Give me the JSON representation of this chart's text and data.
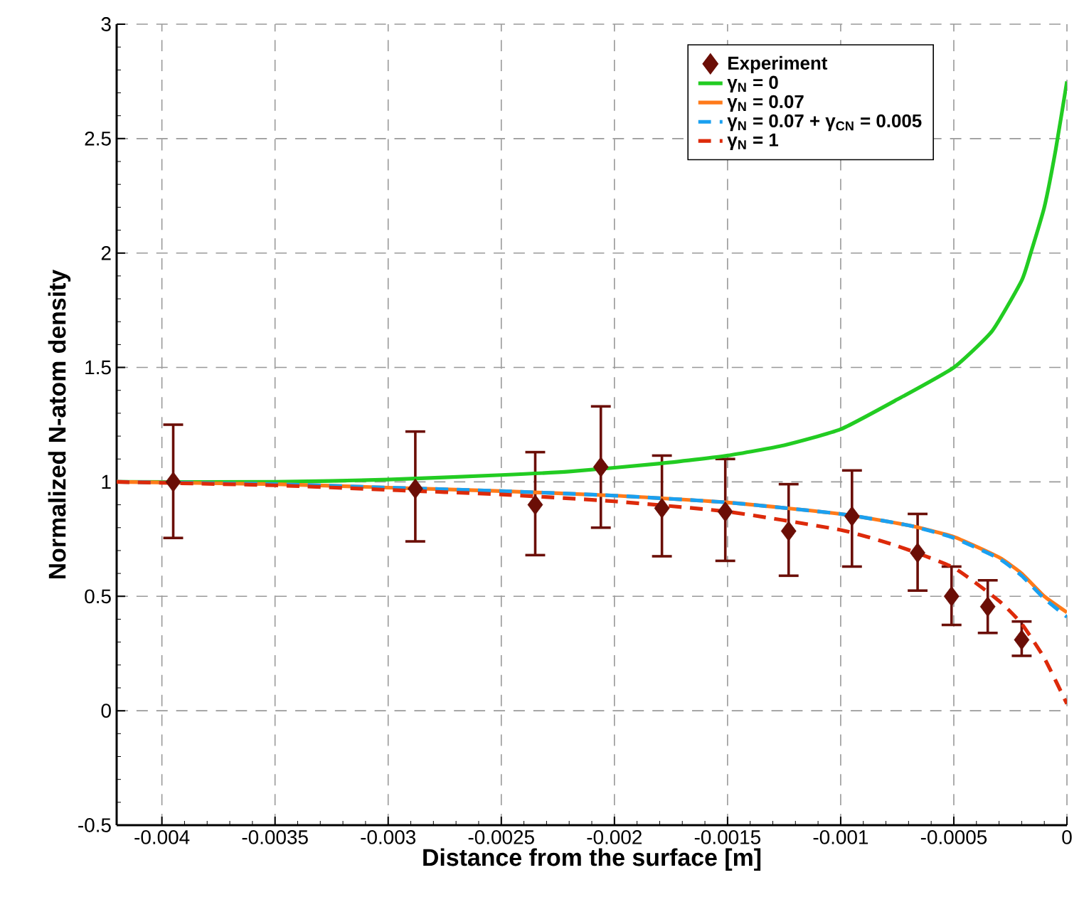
{
  "chart_data": {
    "type": "line",
    "xlabel": "Distance from the surface [m]",
    "ylabel": "Normalized N-atom density",
    "xlim": [
      -0.0042,
      0
    ],
    "ylim": [
      -0.5,
      3
    ],
    "xticks": [
      -0.004,
      -0.0035,
      -0.003,
      -0.0025,
      -0.002,
      -0.0015,
      -0.001,
      -0.0005,
      0
    ],
    "yticks": [
      -0.5,
      0,
      0.5,
      1,
      1.5,
      2,
      2.5,
      3
    ],
    "grid": true,
    "legend": "top right",
    "line_style": "solid",
    "series": [
      {
        "name": "Experiment",
        "type": "scatter",
        "marker": "diamond",
        "color": "#6b0e06",
        "x": [
          -0.00395,
          -0.00288,
          -0.00235,
          -0.00206,
          -0.00179,
          -0.00151,
          -0.00123,
          -0.00095,
          -0.00066,
          -0.00051,
          -0.00035,
          -0.0002
        ],
        "values": [
          1.0,
          0.97,
          0.9,
          1.065,
          0.885,
          0.87,
          0.785,
          0.85,
          0.69,
          0.5,
          0.455,
          0.31
        ],
        "errors": [
          [
            0.755,
            1.25
          ],
          [
            0.74,
            1.22
          ],
          [
            0.68,
            1.13
          ],
          [
            0.8,
            1.33
          ],
          [
            0.675,
            1.115
          ],
          [
            0.655,
            1.1
          ],
          [
            0.59,
            0.99
          ],
          [
            0.63,
            1.05
          ],
          [
            0.525,
            0.86
          ],
          [
            0.375,
            0.63
          ],
          [
            0.34,
            0.57
          ],
          [
            0.24,
            0.39
          ]
        ]
      },
      {
        "name": "γ$_{N}$ = 0",
        "color": "#22cc22",
        "x": [
          -0.0042,
          -0.0035,
          -0.003,
          -0.0025,
          -0.0022,
          -0.0018,
          -0.0015,
          -0.00125,
          -0.001,
          -0.00075,
          -0.0005,
          -0.00033,
          -0.0002,
          -0.00016,
          -0.0001,
          -5e-05,
          0
        ],
        "values": [
          1.0,
          1.0,
          1.01,
          1.03,
          1.045,
          1.08,
          1.115,
          1.16,
          1.23,
          1.36,
          1.5,
          1.66,
          1.88,
          2.0,
          2.2,
          2.45,
          2.75
        ]
      },
      {
        "name": "γ$_{N}$ = 0.07",
        "color": "#ff7a1a",
        "x": [
          -0.0042,
          -0.0035,
          -0.003,
          -0.0025,
          -0.002,
          -0.0015,
          -0.001,
          -0.0007,
          -0.0005,
          -0.0003,
          -0.0002,
          -0.0001,
          0
        ],
        "values": [
          1.0,
          0.99,
          0.975,
          0.96,
          0.94,
          0.91,
          0.86,
          0.81,
          0.76,
          0.67,
          0.6,
          0.5,
          0.43
        ]
      },
      {
        "name": "γ$_{N}$ = 0.07 + γ$_{CN}$ = 0.005",
        "line_style": "dashed",
        "color": "#1aa0f0",
        "x": [
          -0.0042,
          -0.0035,
          -0.003,
          -0.0025,
          -0.002,
          -0.0015,
          -0.001,
          -0.0007,
          -0.0005,
          -0.0003,
          -0.0002,
          -0.0001,
          0
        ],
        "values": [
          1.0,
          0.99,
          0.975,
          0.96,
          0.94,
          0.91,
          0.86,
          0.81,
          0.755,
          0.665,
          0.59,
          0.49,
          0.41
        ]
      },
      {
        "name": "γ$_{N}$ = 1",
        "line_style": "dashed",
        "color": "#dd2a0a",
        "x": [
          -0.0042,
          -0.0035,
          -0.003,
          -0.0025,
          -0.002,
          -0.0015,
          -0.001,
          -0.00075,
          -0.0005,
          -0.0003,
          -0.0002,
          -0.0001,
          0
        ],
        "values": [
          1.0,
          0.985,
          0.965,
          0.945,
          0.915,
          0.87,
          0.79,
          0.72,
          0.625,
          0.48,
          0.38,
          0.23,
          0.03
        ]
      }
    ]
  }
}
